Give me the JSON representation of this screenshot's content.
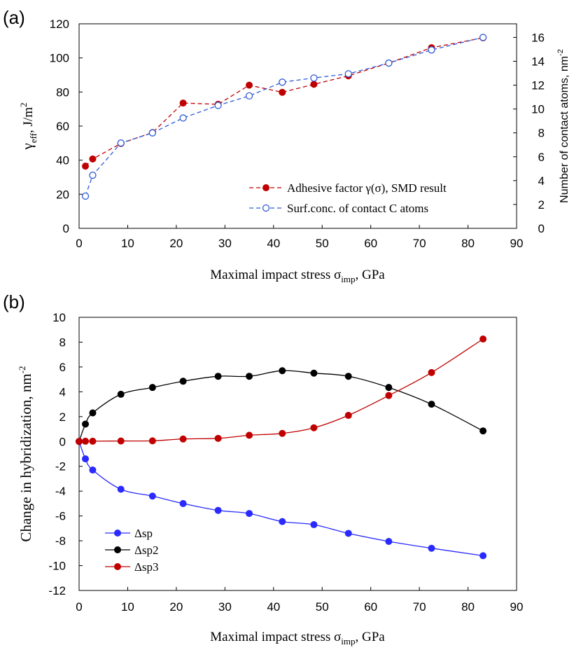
{
  "panels": {
    "a": {
      "label": "(a)"
    },
    "b": {
      "label": "(b)"
    }
  },
  "colors": {
    "red": "#c00000",
    "blue": "#2a2aff",
    "black": "#000000",
    "blue_dashed": "#2f5bd8"
  },
  "chart_data": [
    {
      "type": "line",
      "panel": "a",
      "xlabel": "Maximal  impact  stress  σ",
      "xlabel_sub": "imp",
      "xlabel_unit": ", GPa",
      "ylabel": "γ",
      "ylabel_sub": "eff",
      "ylabel_unit": ",  J/m",
      "ylabel_sup": "2",
      "y2label": "Number of contact atoms, nm",
      "y2label_sup": "-2",
      "xlim": [
        0,
        90
      ],
      "ylim": [
        0,
        120
      ],
      "y2lim": [
        0,
        17.14
      ],
      "xticks": [
        "0",
        "10",
        "20",
        "30",
        "40",
        "50",
        "60",
        "70",
        "80",
        "90"
      ],
      "yticks": [
        "0",
        "20",
        "40",
        "60",
        "80",
        "100",
        "120"
      ],
      "y2ticks": [
        "0",
        "2",
        "4",
        "6",
        "8",
        "10",
        "12",
        "14",
        "16"
      ],
      "legend_position": "bottom-right",
      "series": [
        {
          "name": "Adhesive factor γ(σ), SMD result",
          "axis": "left",
          "style": "dashed-filled",
          "x": [
            1.3,
            2.8,
            8.6,
            15.1,
            21.4,
            28.6,
            35.0,
            41.8,
            48.3,
            55.4,
            63.7,
            72.5,
            83.1
          ],
          "y": [
            36.5,
            40.7,
            49.8,
            56.2,
            73.5,
            72.8,
            84.0,
            79.8,
            84.5,
            89.5,
            97.0,
            106.0,
            111.8
          ]
        },
        {
          "name": "Surf.conc. of contact C atoms",
          "axis": "right",
          "style": "dashed-open",
          "x": [
            1.3,
            2.8,
            8.6,
            15.1,
            21.4,
            28.6,
            35.0,
            41.8,
            48.3,
            55.4,
            63.7,
            72.5,
            83.1
          ],
          "y": [
            2.7,
            4.45,
            7.15,
            8.0,
            9.25,
            10.3,
            11.1,
            12.25,
            12.6,
            12.95,
            13.85,
            14.95,
            16.0
          ]
        }
      ]
    },
    {
      "type": "line",
      "panel": "b",
      "xlabel": "Maximal  impact  stress  σ",
      "xlabel_sub": "imp",
      "xlabel_unit": ", GPa",
      "ylabel": "Change  in  hybridization,  nm",
      "ylabel_sup": "-2",
      "xlim": [
        0,
        90
      ],
      "ylim": [
        -12,
        10
      ],
      "xticks": [
        "0",
        "10",
        "20",
        "30",
        "40",
        "50",
        "60",
        "70",
        "80",
        "90"
      ],
      "yticks": [
        "-12",
        "-10",
        "-8",
        "-6",
        "-4",
        "-2",
        "0",
        "2",
        "4",
        "6",
        "8",
        "10"
      ],
      "legend_position": "bottom-left",
      "series": [
        {
          "name": "Δsp",
          "x": [
            0,
            1.3,
            2.8,
            8.6,
            15.1,
            21.4,
            28.6,
            35.0,
            41.8,
            48.3,
            55.4,
            63.7,
            72.5,
            83.1
          ],
          "y": [
            0,
            -1.4,
            -2.3,
            -3.85,
            -4.4,
            -5.0,
            -5.55,
            -5.8,
            -6.45,
            -6.7,
            -7.4,
            -8.05,
            -8.6,
            -9.2
          ]
        },
        {
          "name": "Δsp2",
          "x": [
            0,
            1.3,
            2.8,
            8.6,
            15.1,
            21.4,
            28.6,
            35.0,
            41.8,
            48.3,
            55.4,
            63.7,
            72.5,
            83.1
          ],
          "y": [
            0,
            1.4,
            2.3,
            3.8,
            4.35,
            4.85,
            5.25,
            5.25,
            5.7,
            5.5,
            5.25,
            4.35,
            3.0,
            0.85
          ]
        },
        {
          "name": "Δsp3",
          "x": [
            0,
            1.3,
            2.8,
            8.6,
            15.1,
            21.4,
            28.6,
            35.0,
            41.8,
            48.3,
            55.4,
            63.7,
            72.5,
            83.1
          ],
          "y": [
            0,
            0.02,
            0.02,
            0.04,
            0.05,
            0.2,
            0.25,
            0.5,
            0.65,
            1.1,
            2.1,
            3.7,
            5.55,
            8.25
          ]
        }
      ]
    }
  ]
}
